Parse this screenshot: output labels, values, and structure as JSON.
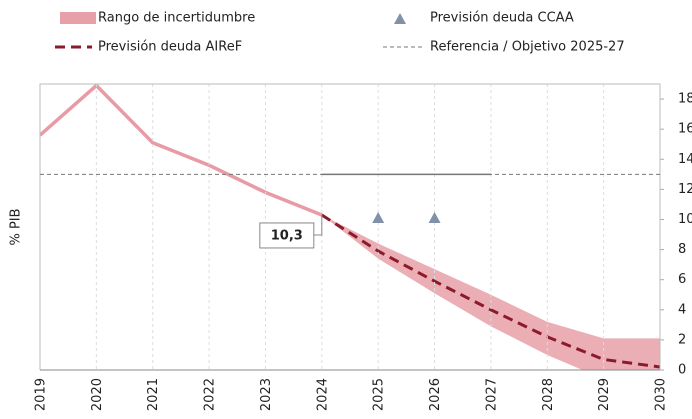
{
  "chart_data": {
    "type": "line",
    "y_label": "% PIB",
    "x": [
      2019,
      2020,
      2021,
      2022,
      2023,
      2024,
      2025,
      2026,
      2027,
      2028,
      2029,
      2030
    ],
    "xlim": [
      2019,
      2030
    ],
    "xticks": [
      2019,
      2020,
      2021,
      2022,
      2023,
      2024,
      2025,
      2026,
      2027,
      2028,
      2029,
      2030
    ],
    "ylim": [
      0,
      19
    ],
    "yticks": [
      0,
      2,
      4,
      6,
      8,
      10,
      12,
      14,
      16,
      18
    ],
    "grid": true,
    "history": {
      "color": "#e89aa5",
      "values": [
        15.6,
        18.9,
        15.1,
        13.6,
        11.8,
        10.3,
        null,
        null,
        null,
        null,
        null,
        null
      ]
    },
    "band": {
      "name": "Rango de incertidumbre",
      "color": "#e8a0a8",
      "upper": [
        null,
        null,
        null,
        null,
        null,
        10.3,
        8.4,
        6.7,
        5.0,
        3.2,
        2.1,
        2.1
      ],
      "lower": [
        null,
        null,
        null,
        null,
        null,
        10.3,
        7.4,
        5.1,
        2.9,
        1.0,
        -0.6,
        -0.6
      ]
    },
    "series": [
      {
        "name": "Previsión deuda CCAA",
        "color": "#8191a8",
        "kind": "marker",
        "values": [
          null,
          null,
          null,
          null,
          null,
          null,
          10.1,
          10.1,
          null,
          null,
          null,
          null
        ]
      },
      {
        "name": "Previsión deuda AIReF",
        "color": "#8b1a2b",
        "kind": "dashed",
        "values": [
          null,
          null,
          null,
          null,
          null,
          10.3,
          7.9,
          5.9,
          4.0,
          2.2,
          0.7,
          0.2
        ]
      }
    ],
    "reference": {
      "name": "Referencia / Objetivo 2025-27",
      "color": "#777",
      "value": 13,
      "target_x": [
        2024,
        2027
      ]
    },
    "annotation": {
      "label": "10,3",
      "x": 2024,
      "y": 10.3
    }
  }
}
